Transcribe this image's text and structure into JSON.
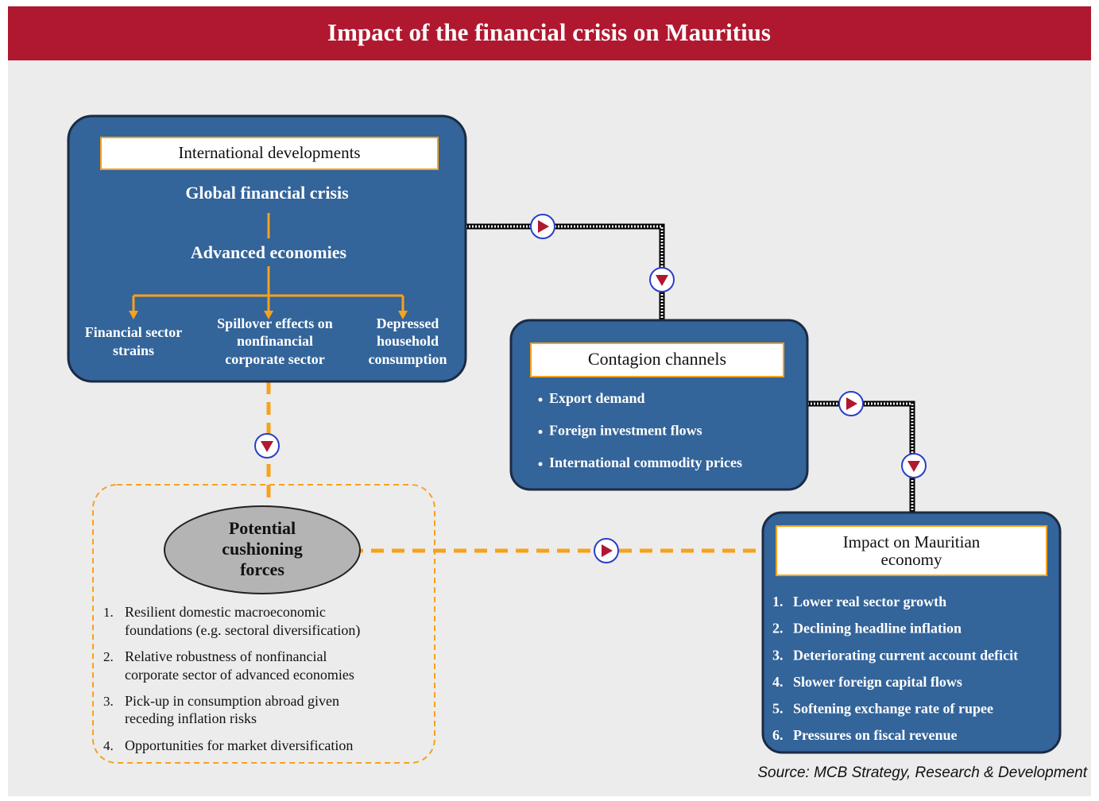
{
  "title": "Impact of the financial crisis on Mauritius",
  "international": {
    "header": "International developments",
    "level1": "Global financial crisis",
    "level2": "Advanced economies",
    "effects": [
      [
        "Financial sector",
        "strains"
      ],
      [
        "Spillover effects on",
        "nonfinancial",
        "corporate sector"
      ],
      [
        "Depressed",
        "household",
        "consumption"
      ]
    ]
  },
  "contagion": {
    "header": "Contagion channels",
    "items": [
      "Export demand",
      "Foreign investment flows",
      "International commodity prices"
    ]
  },
  "impact": {
    "header": [
      "Impact on Mauritian",
      "economy"
    ],
    "items": [
      {
        "number": "1.",
        "text": "Lower real sector growth"
      },
      {
        "number": "2.",
        "text": "Declining headline inflation"
      },
      {
        "number": "3.",
        "text": "Deteriorating current account deficit"
      },
      {
        "number": "4.",
        "text": "Slower foreign capital flows"
      },
      {
        "number": "5.",
        "text": "Softening exchange rate of rupee"
      },
      {
        "number": "6.",
        "text": "Pressures on fiscal revenue"
      }
    ]
  },
  "cushioning": {
    "label": [
      "Potential",
      "cushioning",
      "forces"
    ],
    "items": [
      {
        "number": "1.",
        "lines": [
          "Resilient domestic macroeconomic",
          "foundations (e.g. sectoral diversification)"
        ]
      },
      {
        "number": "2.",
        "lines": [
          "Relative robustness of nonfinancial",
          "corporate sector of advanced economies"
        ]
      },
      {
        "number": "3.",
        "lines": [
          "Pick-up in consumption abroad given",
          "receding inflation risks"
        ]
      },
      {
        "number": "4.",
        "lines": [
          "Opportunities for market diversification"
        ]
      }
    ]
  },
  "source": "Source: MCB Strategy, Research & Development"
}
